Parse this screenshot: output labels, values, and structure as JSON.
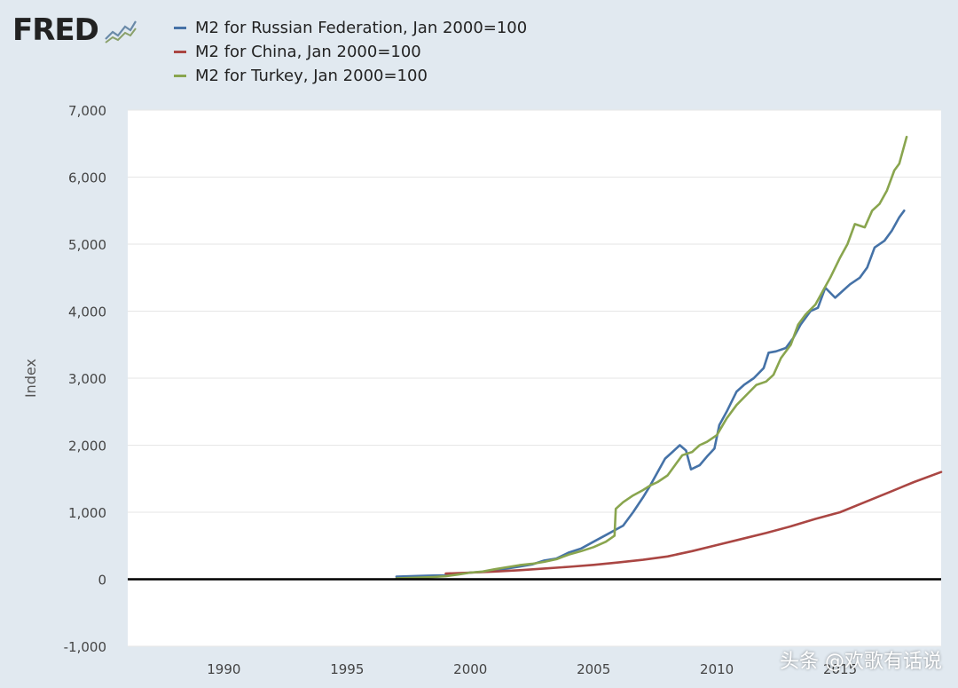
{
  "colors": {
    "background": "#e1e9f0",
    "plot_background": "#ffffff",
    "grid": "#e6e6e6",
    "zero_line": "#000000",
    "russia": "#4572a7",
    "china": "#aa4643",
    "turkey": "#89a54e"
  },
  "header": {
    "logo_text": "FRED",
    "logo_icon": "chart-line-icon",
    "legend": [
      {
        "label": "M2 for Russian Federation, Jan 2000=100",
        "color": "#4572a7"
      },
      {
        "label": "M2 for China, Jan 2000=100",
        "color": "#aa4643"
      },
      {
        "label": "M2 for Turkey, Jan 2000=100",
        "color": "#89a54e"
      }
    ]
  },
  "watermark": "头条 @欢歌有话说",
  "chart_data": {
    "type": "line",
    "title": "",
    "xlabel": "",
    "ylabel": "Index",
    "xlim": [
      1986.1,
      2019.1
    ],
    "ylim": [
      -1000,
      7000
    ],
    "yticks": [
      -1000,
      0,
      1000,
      2000,
      3000,
      4000,
      5000,
      6000,
      7000
    ],
    "ytick_labels": [
      "-1,000",
      "0",
      "1,000",
      "2,000",
      "3,000",
      "4,000",
      "5,000",
      "6,000",
      "7,000"
    ],
    "xticks": [
      1990,
      1995,
      2000,
      2005,
      2010,
      2015
    ],
    "xtick_labels": [
      "1990",
      "1995",
      "2000",
      "2005",
      "2010",
      "2015"
    ],
    "grid": true,
    "series": [
      {
        "name": "M2 for Russian Federation, Jan 2000=100",
        "color": "#4572a7",
        "x": [
          1997.0,
          1998.0,
          1998.5,
          1999.0,
          1999.5,
          2000.0,
          2000.5,
          2001.0,
          2001.5,
          2002.0,
          2002.5,
          2003.0,
          2003.5,
          2004.0,
          2004.5,
          2005.0,
          2005.5,
          2005.9,
          2006.2,
          2006.6,
          2007.0,
          2007.3,
          2007.6,
          2007.9,
          2008.2,
          2008.5,
          2008.75,
          2008.95,
          2009.3,
          2009.6,
          2009.9,
          2010.1,
          2010.4,
          2010.8,
          2011.1,
          2011.5,
          2011.9,
          2012.1,
          2012.4,
          2012.8,
          2013.1,
          2013.4,
          2013.8,
          2014.1,
          2014.4,
          2014.8,
          2015.1,
          2015.4,
          2015.8,
          2016.1,
          2016.4,
          2016.8,
          2017.1,
          2017.4,
          2017.6
        ],
        "values": [
          40,
          50,
          55,
          60,
          80,
          100,
          110,
          140,
          160,
          190,
          220,
          280,
          310,
          400,
          460,
          560,
          660,
          740,
          800,
          1000,
          1220,
          1400,
          1600,
          1800,
          1900,
          2000,
          1920,
          1640,
          1700,
          1830,
          1950,
          2300,
          2500,
          2800,
          2900,
          3000,
          3150,
          3380,
          3400,
          3450,
          3600,
          3800,
          4000,
          4050,
          4350,
          4200,
          4300,
          4400,
          4500,
          4650,
          4950,
          5050,
          5200,
          5400,
          5500
        ]
      },
      {
        "name": "M2 for China, Jan 2000=100",
        "color": "#aa4643",
        "x": [
          1999.0,
          2000.0,
          2001.0,
          2002.0,
          2003.0,
          2004.0,
          2005.0,
          2006.0,
          2007.0,
          2008.0,
          2009.0,
          2010.0,
          2011.0,
          2012.0,
          2013.0,
          2014.0,
          2015.0,
          2016.0,
          2017.0,
          2018.0,
          2019.1
        ],
        "values": [
          85,
          100,
          115,
          135,
          160,
          185,
          215,
          250,
          290,
          340,
          420,
          510,
          600,
          690,
          790,
          900,
          1000,
          1150,
          1300,
          1450,
          1600
        ]
      },
      {
        "name": "M2 for Turkey, Jan 2000=100",
        "color": "#89a54e",
        "x": [
          1997.0,
          1997.5,
          1998.0,
          1998.5,
          1999.0,
          1999.5,
          2000.0,
          2000.5,
          2001.0,
          2001.5,
          2002.0,
          2002.5,
          2003.0,
          2003.5,
          2004.0,
          2004.5,
          2005.0,
          2005.5,
          2005.85,
          2005.9,
          2006.2,
          2006.6,
          2007.0,
          2007.3,
          2007.6,
          2008.0,
          2008.3,
          2008.6,
          2009.0,
          2009.3,
          2009.6,
          2010.0,
          2010.4,
          2010.8,
          2011.2,
          2011.6,
          2012.0,
          2012.3,
          2012.6,
          2013.0,
          2013.3,
          2013.6,
          2014.0,
          2014.3,
          2014.6,
          2015.0,
          2015.3,
          2015.6,
          2016.0,
          2016.3,
          2016.6,
          2016.9,
          2017.2,
          2017.4,
          2017.7
        ],
        "values": [
          12,
          18,
          25,
          33,
          45,
          70,
          100,
          115,
          150,
          180,
          210,
          230,
          260,
          300,
          370,
          420,
          480,
          560,
          650,
          1050,
          1150,
          1250,
          1330,
          1400,
          1450,
          1550,
          1700,
          1850,
          1900,
          2000,
          2050,
          2150,
          2400,
          2600,
          2750,
          2900,
          2950,
          3050,
          3300,
          3500,
          3800,
          3950,
          4100,
          4300,
          4500,
          4800,
          5000,
          5300,
          5250,
          5500,
          5600,
          5800,
          6100,
          6200,
          6600
        ]
      }
    ]
  }
}
